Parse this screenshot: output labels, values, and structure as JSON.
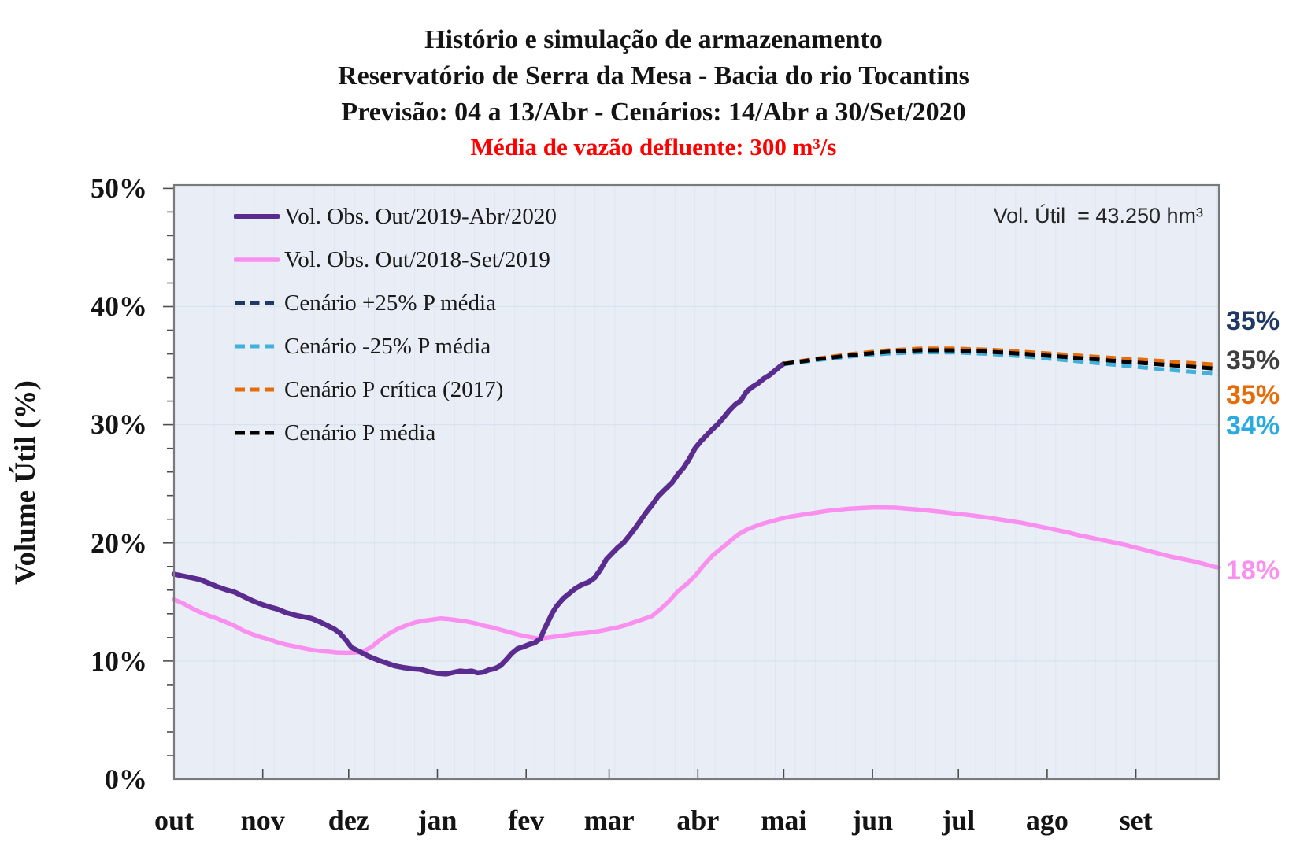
{
  "title": {
    "line1": "Histório e simulação de armazenamento",
    "line2": "Reservatório de Serra da Mesa - Bacia do rio Tocantins",
    "line3": "Previsão: 04 a 13/Abr - Cenários: 14/Abr a 30/Set/2020",
    "subtitle_red": "Média de vazão defluente: 300 m³/s"
  },
  "annotation": "Vol. Útil  = 43.250 hm³",
  "y_axis": {
    "label": "Volume Útil (%)",
    "ticks": [
      "50%",
      "40%",
      "30%",
      "20%",
      "10%",
      "0%"
    ]
  },
  "legend": [
    {
      "label": "Vol. Obs. Out/2019-Abr/2020",
      "color": "#5B2C8F",
      "dashed": false
    },
    {
      "label": "Vol. Obs. Out/2018-Set/2019",
      "color": "#F98FEF",
      "dashed": false
    },
    {
      "label": "Cenário +25% P média",
      "color": "#1F3864",
      "dashed": true
    },
    {
      "label": "Cenário -25% P média",
      "color": "#41B1DC",
      "dashed": true
    },
    {
      "label": "Cenário P crítica (2017)",
      "color": "#E66C09",
      "dashed": true
    },
    {
      "label": "Cenário P média",
      "color": "#000000",
      "dashed": true
    }
  ],
  "end_labels": [
    {
      "text": "35%",
      "color": "#1F3864"
    },
    {
      "text": "35%",
      "color": "#3F3F3F"
    },
    {
      "text": "35%",
      "color": "#E66C09"
    },
    {
      "text": "34%",
      "color": "#29ABE2"
    },
    {
      "text": "18%",
      "color": "#F98FEF"
    }
  ],
  "chart_data": {
    "type": "line",
    "title": "Histório e simulação de armazenamento - Reservatório de Serra da Mesa",
    "x_unit": "days from 01/out",
    "x_range": [
      0,
      365
    ],
    "y_range": [
      0,
      50
    ],
    "ylabel": "Volume Útil (%)",
    "grid": "on",
    "legend_position": "upper-left-inside",
    "month_ticks": {
      "labels": [
        "out",
        "nov",
        "dez",
        "jan",
        "fev",
        "mar",
        "abr",
        "mai",
        "jun",
        "jul",
        "ago",
        "set"
      ],
      "start_days": [
        0,
        31,
        61,
        92,
        123,
        152,
        183,
        213,
        244,
        274,
        305,
        336
      ]
    },
    "series": [
      {
        "name": "Vol. Obs. Out/2018-Set/2019",
        "color": "#F98FEF",
        "style": "solid",
        "width": 5.5,
        "points": [
          [
            0,
            15.2
          ],
          [
            3,
            14.9
          ],
          [
            6,
            14.5
          ],
          [
            9,
            14.15
          ],
          [
            12,
            13.85
          ],
          [
            15,
            13.6
          ],
          [
            18,
            13.3
          ],
          [
            21,
            13.0
          ],
          [
            24,
            12.6
          ],
          [
            27,
            12.3
          ],
          [
            30,
            12.05
          ],
          [
            33,
            11.85
          ],
          [
            36,
            11.6
          ],
          [
            39,
            11.4
          ],
          [
            42,
            11.25
          ],
          [
            45,
            11.1
          ],
          [
            48,
            10.95
          ],
          [
            51,
            10.85
          ],
          [
            54,
            10.8
          ],
          [
            57,
            10.72
          ],
          [
            60,
            10.7
          ],
          [
            63,
            10.72
          ],
          [
            66,
            10.8
          ],
          [
            69,
            11.2
          ],
          [
            72,
            11.8
          ],
          [
            75,
            12.3
          ],
          [
            78,
            12.7
          ],
          [
            81,
            13.0
          ],
          [
            84,
            13.25
          ],
          [
            87,
            13.4
          ],
          [
            90,
            13.5
          ],
          [
            93,
            13.6
          ],
          [
            96,
            13.55
          ],
          [
            99,
            13.45
          ],
          [
            102,
            13.35
          ],
          [
            105,
            13.2
          ],
          [
            108,
            13.0
          ],
          [
            111,
            12.85
          ],
          [
            114,
            12.65
          ],
          [
            117,
            12.45
          ],
          [
            120,
            12.25
          ],
          [
            123,
            12.1
          ],
          [
            126,
            11.95
          ],
          [
            128,
            11.9
          ],
          [
            131,
            12.0
          ],
          [
            134,
            12.1
          ],
          [
            137,
            12.2
          ],
          [
            140,
            12.3
          ],
          [
            143,
            12.35
          ],
          [
            146,
            12.45
          ],
          [
            149,
            12.55
          ],
          [
            152,
            12.7
          ],
          [
            155,
            12.85
          ],
          [
            158,
            13.05
          ],
          [
            161,
            13.3
          ],
          [
            164,
            13.55
          ],
          [
            167,
            13.8
          ],
          [
            170,
            14.4
          ],
          [
            173,
            15.1
          ],
          [
            176,
            15.9
          ],
          [
            179,
            16.5
          ],
          [
            182,
            17.2
          ],
          [
            185,
            18.1
          ],
          [
            188,
            18.9
          ],
          [
            191,
            19.5
          ],
          [
            194,
            20.1
          ],
          [
            197,
            20.7
          ],
          [
            200,
            21.1
          ],
          [
            203,
            21.4
          ],
          [
            206,
            21.65
          ],
          [
            209,
            21.85
          ],
          [
            212,
            22.05
          ],
          [
            216,
            22.25
          ],
          [
            220,
            22.4
          ],
          [
            224,
            22.55
          ],
          [
            228,
            22.7
          ],
          [
            232,
            22.8
          ],
          [
            236,
            22.9
          ],
          [
            240,
            22.95
          ],
          [
            244,
            23.0
          ],
          [
            248,
            23.0
          ],
          [
            252,
            22.98
          ],
          [
            256,
            22.9
          ],
          [
            260,
            22.82
          ],
          [
            264,
            22.72
          ],
          [
            268,
            22.62
          ],
          [
            272,
            22.5
          ],
          [
            276,
            22.4
          ],
          [
            280,
            22.28
          ],
          [
            284,
            22.15
          ],
          [
            288,
            22.0
          ],
          [
            292,
            21.85
          ],
          [
            296,
            21.7
          ],
          [
            300,
            21.5
          ],
          [
            304,
            21.3
          ],
          [
            308,
            21.1
          ],
          [
            312,
            20.9
          ],
          [
            316,
            20.65
          ],
          [
            320,
            20.45
          ],
          [
            324,
            20.25
          ],
          [
            328,
            20.05
          ],
          [
            332,
            19.85
          ],
          [
            336,
            19.6
          ],
          [
            340,
            19.35
          ],
          [
            344,
            19.1
          ],
          [
            348,
            18.85
          ],
          [
            351,
            18.7
          ],
          [
            354,
            18.55
          ],
          [
            357,
            18.4
          ],
          [
            360,
            18.2
          ],
          [
            363,
            18.0
          ],
          [
            365,
            17.9
          ]
        ]
      },
      {
        "name": "Vol. Obs. Out/2019-Abr/2020",
        "color": "#5B2C8F",
        "style": "solid",
        "width": 6.5,
        "points": [
          [
            0,
            17.35
          ],
          [
            3,
            17.2
          ],
          [
            6,
            17.05
          ],
          [
            9,
            16.9
          ],
          [
            12,
            16.6
          ],
          [
            15,
            16.3
          ],
          [
            18,
            16.05
          ],
          [
            21,
            15.85
          ],
          [
            24,
            15.5
          ],
          [
            27,
            15.15
          ],
          [
            30,
            14.85
          ],
          [
            33,
            14.6
          ],
          [
            36,
            14.4
          ],
          [
            39,
            14.1
          ],
          [
            42,
            13.9
          ],
          [
            45,
            13.75
          ],
          [
            48,
            13.6
          ],
          [
            51,
            13.3
          ],
          [
            54,
            12.95
          ],
          [
            56,
            12.7
          ],
          [
            58,
            12.35
          ],
          [
            60,
            11.8
          ],
          [
            62,
            11.15
          ],
          [
            64,
            10.9
          ],
          [
            66,
            10.65
          ],
          [
            68,
            10.4
          ],
          [
            71,
            10.1
          ],
          [
            74,
            9.85
          ],
          [
            77,
            9.6
          ],
          [
            80,
            9.45
          ],
          [
            83,
            9.35
          ],
          [
            86,
            9.3
          ],
          [
            89,
            9.1
          ],
          [
            92,
            8.95
          ],
          [
            95,
            8.9
          ],
          [
            98,
            9.05
          ],
          [
            100,
            9.15
          ],
          [
            102,
            9.1
          ],
          [
            104,
            9.15
          ],
          [
            106,
            9.0
          ],
          [
            108,
            9.05
          ],
          [
            110,
            9.25
          ],
          [
            112,
            9.35
          ],
          [
            114,
            9.6
          ],
          [
            116,
            10.1
          ],
          [
            118,
            10.65
          ],
          [
            120,
            11.05
          ],
          [
            122,
            11.2
          ],
          [
            124,
            11.4
          ],
          [
            126,
            11.55
          ],
          [
            128,
            11.9
          ],
          [
            129,
            12.5
          ],
          [
            130,
            13.0
          ],
          [
            131,
            13.5
          ],
          [
            132,
            14.0
          ],
          [
            133,
            14.4
          ],
          [
            134,
            14.75
          ],
          [
            136,
            15.3
          ],
          [
            138,
            15.7
          ],
          [
            140,
            16.1
          ],
          [
            142,
            16.4
          ],
          [
            145,
            16.7
          ],
          [
            147,
            17.05
          ],
          [
            149,
            17.75
          ],
          [
            151,
            18.6
          ],
          [
            153,
            19.1
          ],
          [
            155,
            19.6
          ],
          [
            157,
            20.0
          ],
          [
            159,
            20.6
          ],
          [
            161,
            21.2
          ],
          [
            163,
            21.9
          ],
          [
            165,
            22.6
          ],
          [
            167,
            23.2
          ],
          [
            169,
            23.9
          ],
          [
            171,
            24.4
          ],
          [
            174,
            25.1
          ],
          [
            176,
            25.8
          ],
          [
            178,
            26.35
          ],
          [
            180,
            27.1
          ],
          [
            182,
            28.0
          ],
          [
            184,
            28.6
          ],
          [
            186,
            29.1
          ],
          [
            188,
            29.6
          ],
          [
            190,
            30.05
          ],
          [
            192,
            30.6
          ],
          [
            194,
            31.2
          ],
          [
            196,
            31.7
          ],
          [
            198,
            32.05
          ],
          [
            200,
            32.8
          ],
          [
            202,
            33.2
          ],
          [
            204,
            33.5
          ],
          [
            206,
            33.9
          ],
          [
            208,
            34.2
          ],
          [
            210,
            34.6
          ],
          [
            212,
            35.0
          ],
          [
            213,
            35.15
          ]
        ]
      },
      {
        "name": "Cenário +25% P média",
        "color": "#1F3864",
        "style": "dashed",
        "width": 5,
        "end_label": "35%",
        "points": [
          [
            213,
            35.15
          ],
          [
            225,
            35.56
          ],
          [
            237,
            35.92
          ],
          [
            249,
            36.2
          ],
          [
            261,
            36.36
          ],
          [
            273,
            36.37
          ],
          [
            285,
            36.26
          ],
          [
            297,
            36.09
          ],
          [
            309,
            35.87
          ],
          [
            321,
            35.64
          ],
          [
            333,
            35.42
          ],
          [
            345,
            35.2
          ],
          [
            357,
            34.99
          ],
          [
            365,
            34.85
          ]
        ]
      },
      {
        "name": "Cenário -25% P média",
        "color": "#41B1DC",
        "style": "dashed",
        "width": 5,
        "end_label": "34%",
        "points": [
          [
            213,
            35.12
          ],
          [
            225,
            35.48
          ],
          [
            237,
            35.8
          ],
          [
            249,
            36.02
          ],
          [
            261,
            36.14
          ],
          [
            273,
            36.12
          ],
          [
            285,
            35.99
          ],
          [
            297,
            35.78
          ],
          [
            309,
            35.52
          ],
          [
            321,
            35.25
          ],
          [
            333,
            34.97
          ],
          [
            345,
            34.7
          ],
          [
            357,
            34.45
          ],
          [
            365,
            34.25
          ]
        ]
      },
      {
        "name": "Cenário P crítica (2017)",
        "color": "#E66C09",
        "style": "dashed",
        "width": 5,
        "end_label": "35%",
        "points": [
          [
            213,
            35.17
          ],
          [
            225,
            35.62
          ],
          [
            237,
            36.0
          ],
          [
            249,
            36.3
          ],
          [
            261,
            36.45
          ],
          [
            273,
            36.45
          ],
          [
            285,
            36.35
          ],
          [
            297,
            36.18
          ],
          [
            309,
            35.98
          ],
          [
            321,
            35.77
          ],
          [
            333,
            35.58
          ],
          [
            345,
            35.4
          ],
          [
            357,
            35.2
          ],
          [
            365,
            35.07
          ]
        ]
      },
      {
        "name": "Cenário P média",
        "color": "#000000",
        "style": "dashed",
        "width": 5,
        "end_label": "35%",
        "points": [
          [
            213,
            35.15
          ],
          [
            225,
            35.55
          ],
          [
            237,
            35.9
          ],
          [
            249,
            36.17
          ],
          [
            261,
            36.31
          ],
          [
            273,
            36.3
          ],
          [
            285,
            36.18
          ],
          [
            297,
            36.0
          ],
          [
            309,
            35.78
          ],
          [
            321,
            35.55
          ],
          [
            333,
            35.32
          ],
          [
            345,
            35.1
          ],
          [
            357,
            34.88
          ],
          [
            365,
            34.72
          ]
        ]
      }
    ]
  }
}
